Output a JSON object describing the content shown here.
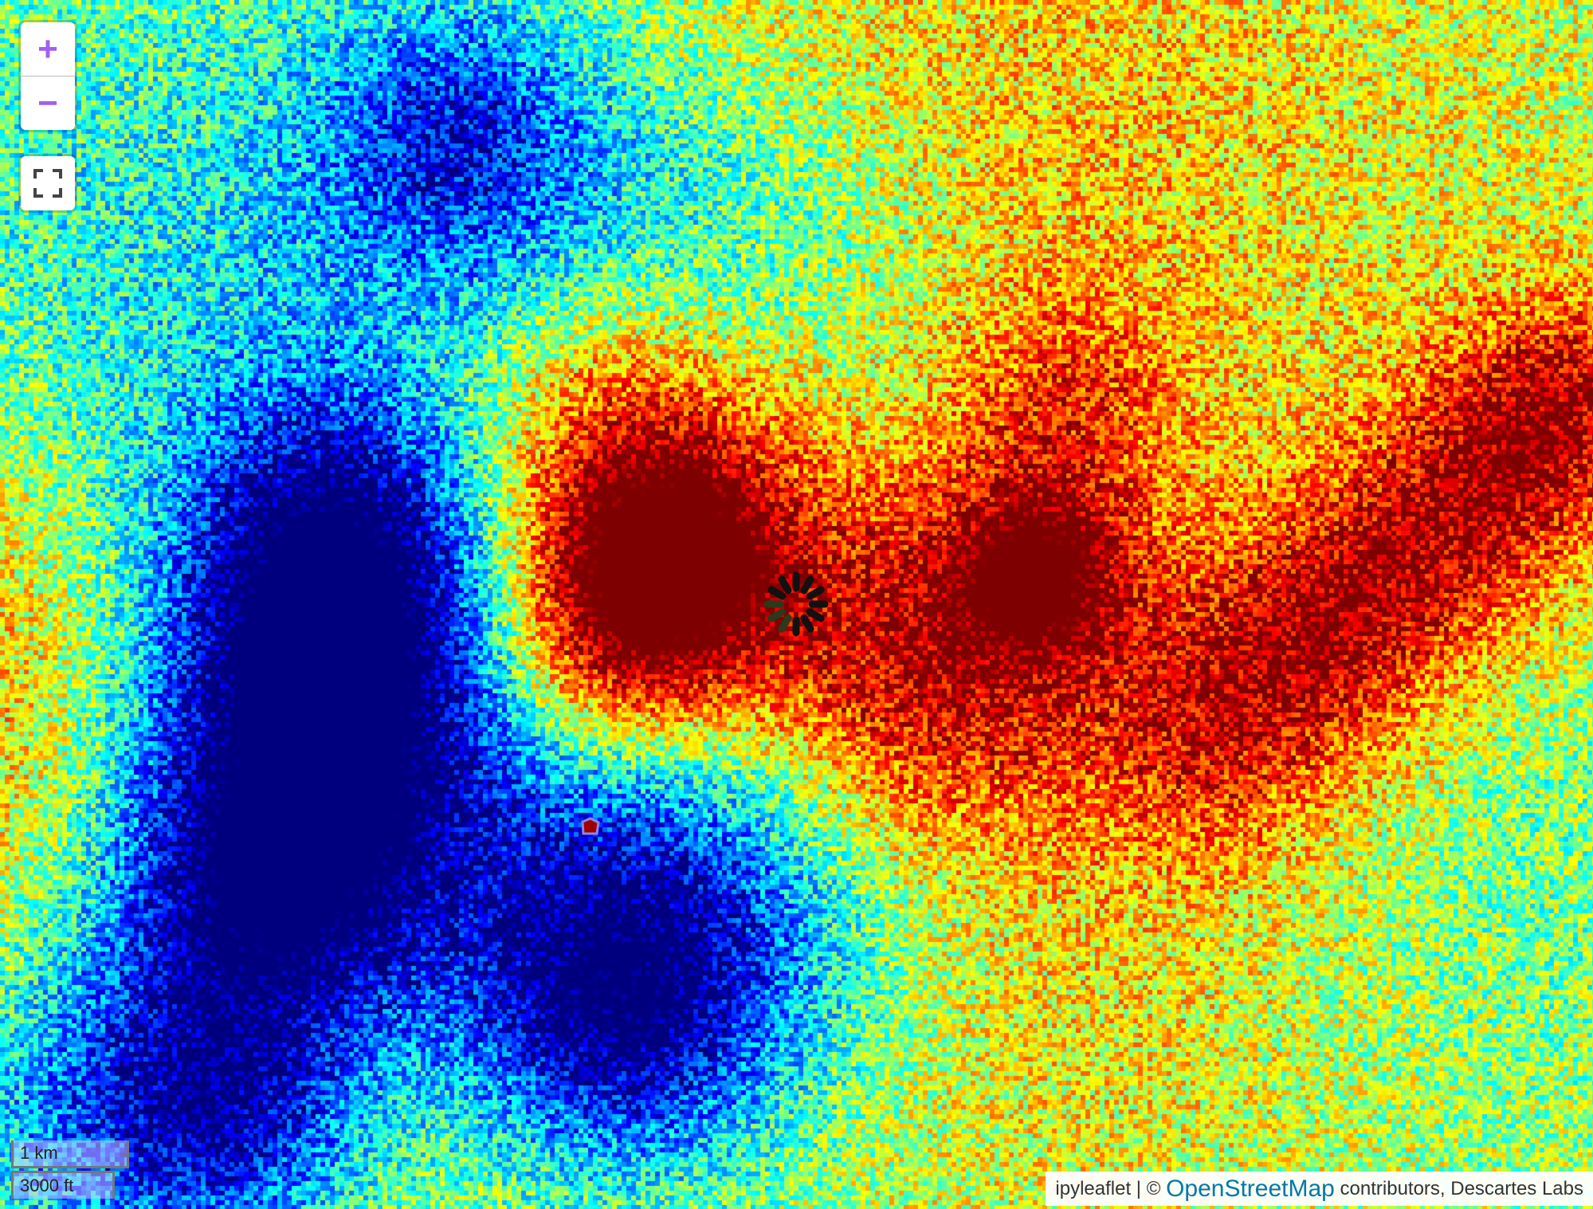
{
  "map": {
    "colormap": "jet",
    "controls": {
      "zoom_in_label": "+",
      "zoom_out_label": "−",
      "fullscreen_icon": "fullscreen-icon",
      "accent_color": "#a060f0"
    },
    "scale": {
      "metric": "1 km",
      "imperial": "3000 ft"
    },
    "attribution": {
      "prefix": "ipyleaflet | © ",
      "link": "OpenStreetMap",
      "suffix": " contributors, Descartes Labs",
      "link_color": "#0078a8"
    },
    "loading_spinner": "loading-spinner-icon"
  }
}
